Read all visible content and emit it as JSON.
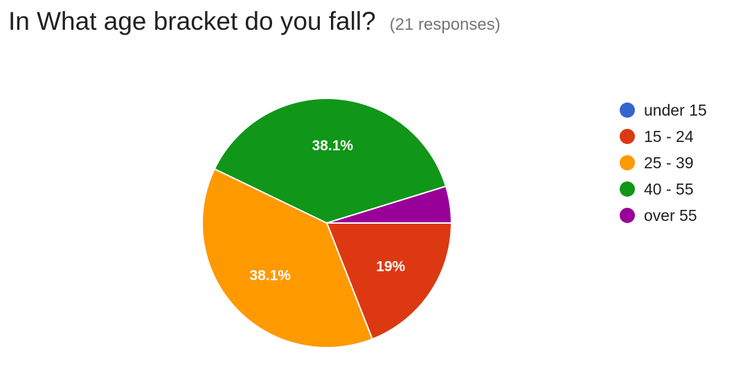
{
  "header": {
    "title": "In What age bracket do you fall?",
    "subtitle": "(21 responses)"
  },
  "chart_data": {
    "type": "pie",
    "categories": [
      "under 15",
      "15 - 24",
      "25 - 39",
      "40 - 55",
      "over 55"
    ],
    "counts": [
      0,
      4,
      8,
      8,
      1
    ],
    "values": [
      0,
      19.0,
      38.1,
      38.1,
      4.8
    ],
    "data_labels": [
      "",
      "19%",
      "38.1%",
      "38.1%",
      ""
    ],
    "colors": [
      "#3366cc",
      "#dc3912",
      "#ff9900",
      "#109618",
      "#990099"
    ],
    "legend": "right",
    "start": "3 o'clock, clockwise"
  }
}
